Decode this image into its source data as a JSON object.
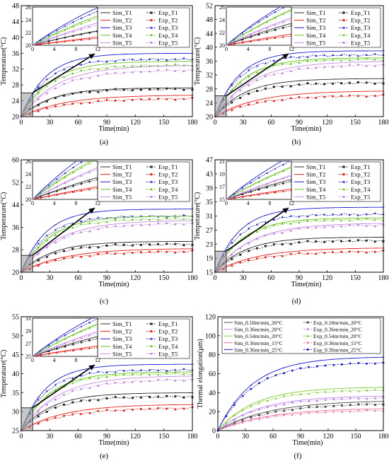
{
  "colors": {
    "T1": "#2b2b2b",
    "T2": "#e8201b",
    "T3": "#1a1ad9",
    "T4": "#66c61c",
    "T5": "#c58be4",
    "F1": "#505050",
    "F2": "#c28ae8",
    "F3": "#78cc2a",
    "F4": "#ef6fa5",
    "F5": "#ee1b1b",
    "F6": "#1a1ad9"
  },
  "chart_data": [
    {
      "panel": "(a)",
      "type": "line",
      "xlabel": "Time(min)",
      "ylabel": "Temperature(°C)",
      "xlim": [
        0,
        180
      ],
      "ylim": [
        20,
        48
      ],
      "xticks": [
        0,
        30,
        60,
        90,
        120,
        150,
        180
      ],
      "yticks": [
        20,
        24,
        28,
        32,
        36,
        40,
        44,
        48
      ],
      "legend": [
        "Sim_T1",
        "Exp_T1",
        "Sim_T2",
        "Exp_T2",
        "Sim_T3",
        "Exp_T3",
        "Sim_T4",
        "Exp_T4",
        "Sim_T5",
        "Exp_T5"
      ],
      "inset": {
        "xlim": [
          0,
          12
        ],
        "ylim": [
          20,
          26
        ],
        "xticks": [
          0,
          4,
          8,
          12
        ],
        "yticks": [
          20,
          22,
          24,
          26
        ]
      },
      "series": [
        {
          "name": "Sim_T1",
          "final": 27.3
        },
        {
          "name": "Exp_T1",
          "final": 27.0
        },
        {
          "name": "Sim_T2",
          "final": 25.5
        },
        {
          "name": "Exp_T2",
          "final": 24.6
        },
        {
          "name": "Sim_T3",
          "final": 36.0
        },
        {
          "name": "Exp_T3",
          "final": 34.5
        },
        {
          "name": "Sim_T4",
          "final": 34.0
        },
        {
          "name": "Exp_T4",
          "final": 33.0
        },
        {
          "name": "Sim_T5",
          "final": 33.0
        },
        {
          "name": "Exp_T5",
          "final": 31.8
        }
      ]
    },
    {
      "panel": "(b)",
      "type": "line",
      "xlabel": "Time(min)",
      "ylabel": "Temperature(°C)",
      "xlim": [
        0,
        180
      ],
      "ylim": [
        20,
        52
      ],
      "xticks": [
        0,
        30,
        60,
        90,
        120,
        150,
        180
      ],
      "yticks": [
        20,
        24,
        28,
        32,
        36,
        40,
        44,
        48,
        52
      ],
      "legend": [
        "Sim_T1",
        "Exp_T1",
        "Sim_T2",
        "Exp_T2",
        "Sim_T3",
        "Exp_T3",
        "Sim_T4",
        "Exp_T4",
        "Sim_T5",
        "Exp_T5"
      ],
      "inset": {
        "xlim": [
          0,
          12
        ],
        "ylim": [
          20,
          26
        ],
        "xticks": [
          0,
          4,
          8,
          12
        ],
        "yticks": [
          20,
          22,
          24,
          26
        ]
      },
      "series": [
        {
          "name": "Sim_T1",
          "final": 31.0
        },
        {
          "name": "Exp_T1",
          "final": 29.8
        },
        {
          "name": "Sim_T2",
          "final": 27.5
        },
        {
          "name": "Exp_T2",
          "final": 26.2
        },
        {
          "name": "Sim_T3",
          "final": 39.0
        },
        {
          "name": "Exp_T3",
          "final": 37.8
        },
        {
          "name": "Sim_T4",
          "final": 37.0
        },
        {
          "name": "Exp_T4",
          "final": 36.5
        },
        {
          "name": "Sim_T5",
          "final": 36.0
        },
        {
          "name": "Exp_T5",
          "final": 35.0
        }
      ]
    },
    {
      "panel": "(c)",
      "type": "line",
      "xlabel": "Time(min)",
      "ylabel": "Temperature(°C)",
      "xlim": [
        0,
        180
      ],
      "ylim": [
        20,
        60
      ],
      "xticks": [
        0,
        30,
        60,
        90,
        120,
        150,
        180
      ],
      "yticks": [
        20,
        28,
        36,
        44,
        52,
        60
      ],
      "legend": [
        "Sim_T1",
        "Exp_T1",
        "Sim_T2",
        "Exp_T2",
        "Sim_T3",
        "Exp_T3",
        "Sim_T4",
        "Exp_T4",
        "Sim_T5",
        "Exp_T5"
      ],
      "inset": {
        "xlim": [
          0,
          12
        ],
        "ylim": [
          20,
          26
        ],
        "xticks": [
          0,
          4,
          8,
          12
        ],
        "yticks": [
          20,
          22,
          24,
          26
        ]
      },
      "series": [
        {
          "name": "Sim_T1",
          "final": 31.0
        },
        {
          "name": "Exp_T1",
          "final": 30.0
        },
        {
          "name": "Sim_T2",
          "final": 28.5
        },
        {
          "name": "Exp_T2",
          "final": 27.5
        },
        {
          "name": "Sim_T3",
          "final": 42.5
        },
        {
          "name": "Exp_T3",
          "final": 40.0
        },
        {
          "name": "Sim_T4",
          "final": 40.0
        },
        {
          "name": "Exp_T4",
          "final": 39.0
        },
        {
          "name": "Sim_T5",
          "final": 38.5
        },
        {
          "name": "Exp_T5",
          "final": 37.5
        }
      ]
    },
    {
      "panel": "(d)",
      "type": "line",
      "xlabel": "Time(min)",
      "ylabel": "Temperature(°C)",
      "xlim": [
        0,
        180
      ],
      "ylim": [
        15,
        47
      ],
      "xticks": [
        0,
        30,
        60,
        90,
        120,
        150,
        180
      ],
      "yticks": [
        15,
        19,
        23,
        27,
        31,
        35,
        39,
        43,
        47
      ],
      "legend": [
        "Sim_T1",
        "Exp_T1",
        "Sim_T2",
        "Exp_T2",
        "Sim_T3",
        "Exp_T3",
        "Sim_T4",
        "Exp_T4",
        "Sim_T5",
        "Exp_T5"
      ],
      "inset": {
        "xlim": [
          0,
          12
        ],
        "ylim": [
          15,
          21
        ],
        "xticks": [
          0,
          4,
          8,
          12
        ],
        "yticks": [
          15,
          17,
          19,
          21
        ]
      },
      "series": [
        {
          "name": "Sim_T1",
          "final": 25.0
        },
        {
          "name": "Exp_T1",
          "final": 24.0
        },
        {
          "name": "Sim_T2",
          "final": 22.0
        },
        {
          "name": "Exp_T2",
          "final": 21.0
        },
        {
          "name": "Sim_T3",
          "final": 33.5
        },
        {
          "name": "Exp_T3",
          "final": 31.5
        },
        {
          "name": "Sim_T4",
          "final": 30.5
        },
        {
          "name": "Exp_T4",
          "final": 30.0
        },
        {
          "name": "Sim_T5",
          "final": 29.0
        },
        {
          "name": "Exp_T5",
          "final": 28.5
        }
      ]
    },
    {
      "panel": "(e)",
      "type": "line",
      "xlabel": "Time(min)",
      "ylabel": "Temperature(°C)",
      "xlim": [
        0,
        180
      ],
      "ylim": [
        25,
        55
      ],
      "xticks": [
        0,
        30,
        60,
        90,
        120,
        150,
        180
      ],
      "yticks": [
        25,
        30,
        35,
        40,
        45,
        50,
        55
      ],
      "legend": [
        "Sim_T1",
        "Exp_T1",
        "Sim_T2",
        "Exp_T2",
        "Sim_T3",
        "Exp_T3",
        "Sim_T4",
        "Exp_T4",
        "Sim_T5",
        "Exp_T5"
      ],
      "inset": {
        "xlim": [
          0,
          12
        ],
        "ylim": [
          25,
          31
        ],
        "xticks": [
          0,
          4,
          8,
          12
        ],
        "yticks": [
          25,
          27,
          29,
          31
        ]
      },
      "series": [
        {
          "name": "Sim_T1",
          "final": 35.0
        },
        {
          "name": "Exp_T1",
          "final": 34.0
        },
        {
          "name": "Sim_T2",
          "final": 32.0
        },
        {
          "name": "Exp_T2",
          "final": 31.0
        },
        {
          "name": "Sim_T3",
          "final": 42.5
        },
        {
          "name": "Exp_T3",
          "final": 41.0
        },
        {
          "name": "Sim_T4",
          "final": 40.5
        },
        {
          "name": "Exp_T4",
          "final": 40.0
        },
        {
          "name": "Sim_T5",
          "final": 39.5
        },
        {
          "name": "Exp_T5",
          "final": 38.5
        }
      ]
    },
    {
      "panel": "(f)",
      "type": "line",
      "xlabel": "Time(min)",
      "ylabel": "Thermal elongation(μm)",
      "xlim": [
        0,
        180
      ],
      "ylim": [
        0,
        120
      ],
      "xticks": [
        0,
        30,
        60,
        90,
        120,
        150,
        180
      ],
      "yticks": [
        0,
        20,
        40,
        60,
        80,
        100,
        120
      ],
      "legend": [
        "Sim_0.18m/min_20°C",
        "Exp_0.18m/min_20°C",
        "Sim_0.36m/min_20°C",
        "Exp_0.36m/min_20°C",
        "Sim_0.54m/min_20°C",
        "Exp_0.54m/min_20°C",
        "Sim_0.36m/min_15°C",
        "Exp_0.36m/min_15°C",
        "Sim_0.36m/min_25°C",
        "Exp_0.36m/min_25°C"
      ],
      "series": [
        {
          "name": "Sim_0.18m/min_20°C",
          "final": 32
        },
        {
          "name": "Exp_0.18m/min_20°C",
          "final": 29
        },
        {
          "name": "Sim_0.36m/min_20°C",
          "final": 37
        },
        {
          "name": "Exp_0.36m/min_20°C",
          "final": 35
        },
        {
          "name": "Sim_0.54m/min_20°C",
          "final": 46
        },
        {
          "name": "Exp_0.54m/min_20°C",
          "final": 43
        },
        {
          "name": "Sim_0.36m/min_15°C",
          "final": 24
        },
        {
          "name": "Exp_0.36m/min_15°C",
          "final": 22
        },
        {
          "name": "Sim_0.36m/min_25°C",
          "final": 78
        },
        {
          "name": "Exp_0.36m/min_25°C",
          "final": 72
        }
      ]
    }
  ]
}
